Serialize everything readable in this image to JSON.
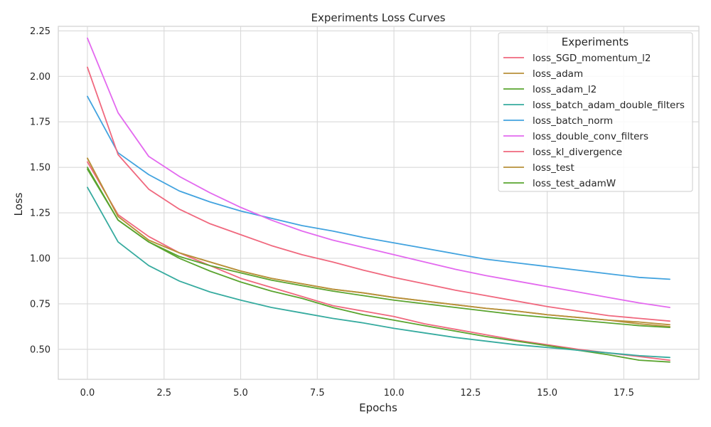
{
  "chart_data": {
    "type": "line",
    "title": "Experiments Loss Curves",
    "xlabel": "Epochs",
    "ylabel": "Loss",
    "xlim": [
      -0.95,
      19.95
    ],
    "ylim": [
      0.335,
      2.275
    ],
    "xticks": [
      0.0,
      2.5,
      5.0,
      7.5,
      10.0,
      12.5,
      15.0,
      17.5
    ],
    "xtick_labels": [
      "0.0",
      "2.5",
      "5.0",
      "7.5",
      "10.0",
      "12.5",
      "15.0",
      "17.5"
    ],
    "yticks": [
      0.5,
      0.75,
      1.0,
      1.25,
      1.5,
      1.75,
      2.0,
      2.25
    ],
    "ytick_labels": [
      "0.50",
      "0.75",
      "1.00",
      "1.25",
      "1.50",
      "1.75",
      "2.00",
      "2.25"
    ],
    "grid": true,
    "legend": {
      "title": "Experiments",
      "placement": "top-right"
    },
    "x": [
      0,
      1,
      2,
      3,
      4,
      5,
      6,
      7,
      8,
      9,
      10,
      11,
      12,
      13,
      14,
      15,
      16,
      17,
      18,
      19
    ],
    "series": [
      {
        "name": "loss_SGD_momentum_l2",
        "color": "#f0687e",
        "values": [
          1.53,
          1.24,
          1.12,
          1.03,
          0.96,
          0.89,
          0.84,
          0.79,
          0.74,
          0.71,
          0.68,
          0.64,
          0.61,
          0.58,
          0.55,
          0.525,
          0.5,
          0.48,
          0.46,
          0.44
        ]
      },
      {
        "name": "loss_adam",
        "color": "#b8903a",
        "values": [
          1.55,
          1.23,
          1.1,
          1.03,
          0.98,
          0.93,
          0.89,
          0.86,
          0.83,
          0.81,
          0.785,
          0.765,
          0.745,
          0.725,
          0.71,
          0.69,
          0.675,
          0.66,
          0.65,
          0.635
        ]
      },
      {
        "name": "loss_adam_l2",
        "color": "#5aa42f",
        "values": [
          1.5,
          1.21,
          1.09,
          1.0,
          0.93,
          0.87,
          0.82,
          0.78,
          0.73,
          0.69,
          0.66,
          0.63,
          0.6,
          0.57,
          0.545,
          0.52,
          0.495,
          0.47,
          0.44,
          0.43
        ]
      },
      {
        "name": "loss_batch_adam_double_filters",
        "color": "#36ab9f",
        "values": [
          1.39,
          1.09,
          0.96,
          0.875,
          0.815,
          0.77,
          0.73,
          0.7,
          0.67,
          0.645,
          0.615,
          0.59,
          0.565,
          0.545,
          0.525,
          0.51,
          0.495,
          0.48,
          0.465,
          0.455
        ]
      },
      {
        "name": "loss_batch_norm",
        "color": "#42a3df",
        "values": [
          1.89,
          1.58,
          1.46,
          1.37,
          1.31,
          1.26,
          1.22,
          1.18,
          1.15,
          1.115,
          1.085,
          1.055,
          1.025,
          0.995,
          0.975,
          0.955,
          0.935,
          0.915,
          0.895,
          0.885
        ]
      },
      {
        "name": "loss_double_conv_filters",
        "color": "#e369ef",
        "values": [
          2.21,
          1.8,
          1.56,
          1.45,
          1.36,
          1.28,
          1.21,
          1.15,
          1.1,
          1.06,
          1.02,
          0.98,
          0.94,
          0.905,
          0.875,
          0.845,
          0.815,
          0.785,
          0.755,
          0.73
        ]
      },
      {
        "name": "loss_kl_divergence",
        "color": "#f0687e",
        "values": [
          2.05,
          1.57,
          1.38,
          1.27,
          1.19,
          1.13,
          1.07,
          1.02,
          0.98,
          0.935,
          0.895,
          0.86,
          0.825,
          0.795,
          0.765,
          0.735,
          0.71,
          0.685,
          0.67,
          0.655
        ]
      },
      {
        "name": "loss_test",
        "color": "#b8903a",
        "values": [
          1.55,
          1.23,
          1.1,
          1.03,
          0.98,
          0.93,
          0.89,
          0.86,
          0.83,
          0.81,
          0.785,
          0.765,
          0.745,
          0.725,
          0.71,
          0.69,
          0.675,
          0.66,
          0.64,
          0.625
        ]
      },
      {
        "name": "loss_test_adamW",
        "color": "#5aa42f",
        "values": [
          1.49,
          1.21,
          1.09,
          1.01,
          0.96,
          0.92,
          0.88,
          0.85,
          0.82,
          0.795,
          0.77,
          0.75,
          0.73,
          0.71,
          0.69,
          0.675,
          0.66,
          0.645,
          0.63,
          0.62
        ]
      }
    ]
  }
}
